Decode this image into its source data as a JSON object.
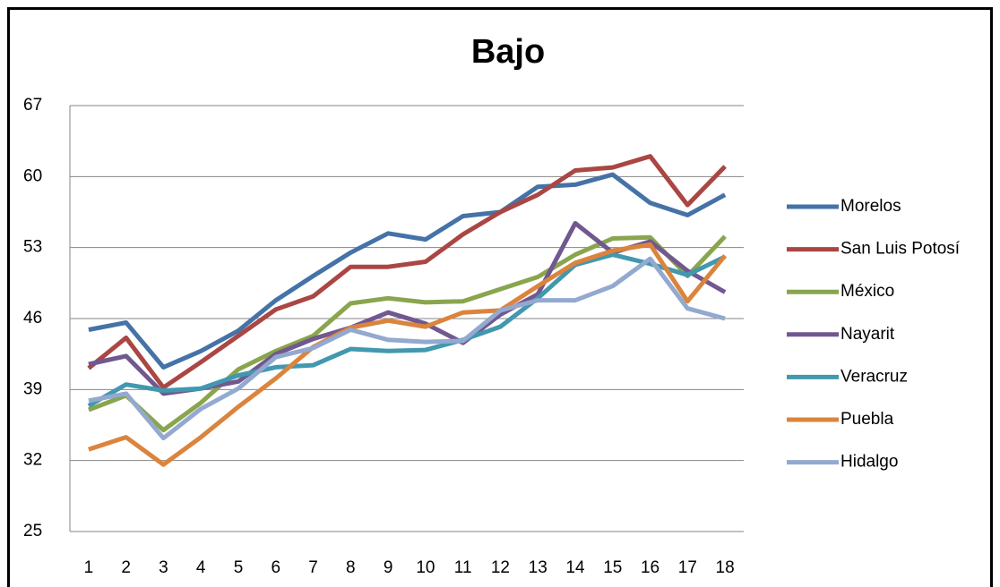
{
  "chart_data": {
    "type": "line",
    "title": "Bajo",
    "categories": [
      1,
      2,
      3,
      4,
      5,
      6,
      7,
      8,
      9,
      10,
      11,
      12,
      13,
      14,
      15,
      16,
      17,
      18
    ],
    "ylim": [
      25,
      67
    ],
    "yticks": [
      25,
      32,
      39,
      46,
      53,
      60,
      67
    ],
    "grid": true,
    "legend": "right",
    "series": [
      {
        "name": "Morelos",
        "color": "#4572a7",
        "values": [
          44.9,
          45.6,
          41.2,
          42.8,
          44.8,
          47.8,
          50.2,
          52.5,
          54.4,
          53.8,
          56.1,
          56.5,
          59.0,
          59.2,
          60.2,
          57.4,
          56.2,
          58.2
        ]
      },
      {
        "name": "San Luis Potosí",
        "color": "#aa4643",
        "values": [
          41.1,
          44.1,
          39.2,
          41.7,
          44.3,
          46.9,
          48.2,
          51.1,
          51.1,
          51.6,
          54.3,
          56.5,
          58.2,
          60.6,
          60.9,
          62.0,
          57.2,
          61.0
        ]
      },
      {
        "name": "México",
        "color": "#89a54e",
        "values": [
          37.0,
          38.4,
          35.0,
          37.7,
          41.0,
          42.8,
          44.3,
          47.5,
          48.0,
          47.6,
          47.7,
          48.9,
          50.1,
          52.3,
          53.9,
          54.0,
          50.2,
          54.1
        ]
      },
      {
        "name": "Nayarit",
        "color": "#71588f",
        "values": [
          41.5,
          42.3,
          38.6,
          39.1,
          39.8,
          42.5,
          44.0,
          45.1,
          46.6,
          45.5,
          43.6,
          46.4,
          48.4,
          55.4,
          52.5,
          53.6,
          50.7,
          48.6
        ]
      },
      {
        "name": "Veracruz",
        "color": "#4198af",
        "values": [
          37.4,
          39.5,
          38.9,
          39.1,
          40.4,
          41.2,
          41.4,
          43.0,
          42.8,
          42.9,
          43.9,
          45.2,
          48.0,
          51.3,
          52.3,
          51.4,
          50.3,
          52.1
        ]
      },
      {
        "name": "Puebla",
        "color": "#db843d",
        "values": [
          33.1,
          34.3,
          31.6,
          34.3,
          37.3,
          40.1,
          43.2,
          45.1,
          45.8,
          45.2,
          46.6,
          46.8,
          49.2,
          51.5,
          52.7,
          53.3,
          47.7,
          52.2
        ]
      },
      {
        "name": "Hidalgo",
        "color": "#93a9cf",
        "values": [
          37.9,
          38.6,
          34.2,
          37.1,
          39.1,
          42.2,
          43.1,
          44.9,
          43.9,
          43.7,
          43.8,
          46.8,
          47.8,
          47.8,
          49.2,
          51.9,
          47.0,
          46.0
        ]
      }
    ]
  }
}
